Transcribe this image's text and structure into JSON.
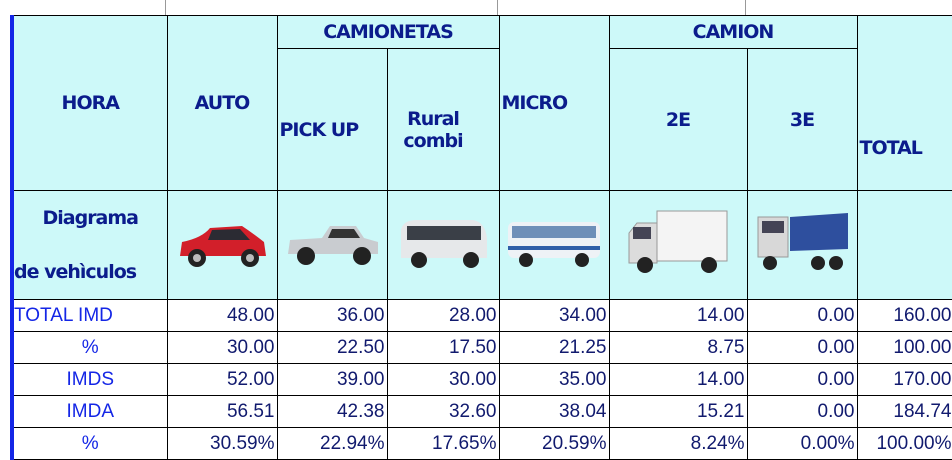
{
  "table": {
    "group_headers": [
      "CAMIONETAS",
      "CAMION"
    ],
    "columns": [
      "HORA",
      "AUTO",
      "PICK UP",
      "Rural combi",
      "MICRO",
      "2E",
      "3E",
      "TOTAL"
    ],
    "diagram_label": [
      "Diagrama",
      "de vehìculos"
    ],
    "rows": [
      [
        "TOTAL IMD",
        "48.00",
        "36.00",
        "28.00",
        "34.00",
        "14.00",
        "0.00",
        "160.00"
      ],
      [
        "%",
        "30.00",
        "22.50",
        "17.50",
        "21.25",
        "8.75",
        "0.00",
        "100.00"
      ],
      [
        "IMDS",
        "52.00",
        "39.00",
        "30.00",
        "35.00",
        "14.00",
        "0.00",
        "170.00"
      ],
      [
        "IMDA",
        "56.51",
        "42.38",
        "32.60",
        "38.04",
        "15.21",
        "0.00",
        "184.74"
      ],
      [
        "%",
        "30.59%",
        "22.94%",
        "17.65%",
        "20.59%",
        "8.24%",
        "0.00%",
        "100.00%"
      ]
    ]
  }
}
